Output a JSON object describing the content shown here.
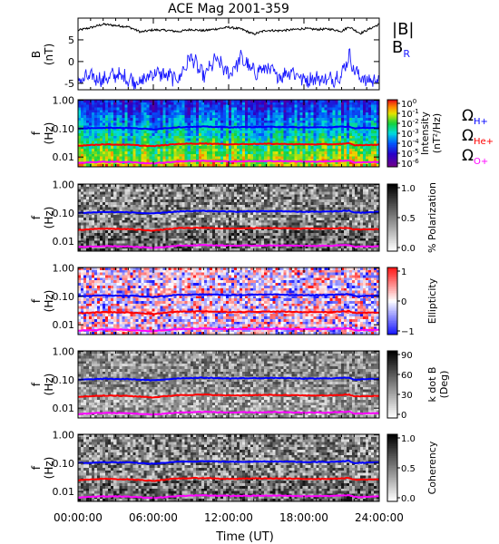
{
  "title": "ACE Mag 2001-359",
  "xlabel": "Time (UT)",
  "x_ticks": [
    "00:00:00",
    "06:00:00",
    "12:00:00",
    "18:00:00",
    "24:00:00"
  ],
  "colors": {
    "br": "#1a1aff",
    "b_total": "#000000",
    "h_plus": "#0000ff",
    "he_plus": "#ff0000",
    "o_plus": "#ff00ff"
  },
  "chart_data": [
    {
      "type": "line",
      "panel": "magnetic-field",
      "ylabel": "B (nT)",
      "y_ticks": [
        "5",
        "0",
        "-5"
      ],
      "ylim": [
        -6.5,
        10
      ],
      "xlim_hours": [
        0,
        24
      ],
      "series": [
        {
          "name": "|B|",
          "x_hours": [
            0,
            1,
            2,
            3,
            4,
            5,
            6,
            7,
            8,
            9,
            10,
            11,
            12,
            13,
            14,
            15,
            16,
            17,
            18,
            19,
            20,
            21,
            21.6,
            22,
            22.5,
            23,
            24
          ],
          "values": [
            7.2,
            7.8,
            8.6,
            8.3,
            8.0,
            6.8,
            7.3,
            7.2,
            6.9,
            7.4,
            7.1,
            7.5,
            7.9,
            7.5,
            6.3,
            7.2,
            7.1,
            7.3,
            7.6,
            7.4,
            7.5,
            7.0,
            8.0,
            7.3,
            6.5,
            7.2,
            8.6
          ]
        },
        {
          "name": "B",
          "sub": "R",
          "x_hours": [
            0,
            1,
            2,
            3,
            4,
            5,
            6,
            7,
            8,
            9,
            10,
            11,
            12,
            13,
            14,
            15,
            16,
            17,
            18,
            19,
            20,
            21,
            21.6,
            22,
            22.5,
            23,
            24
          ],
          "values": [
            -4.5,
            -3.5,
            -4.2,
            -3.0,
            -4.0,
            -4.8,
            -2.5,
            -3.2,
            -4.0,
            1.2,
            -3.5,
            0.5,
            -3.0,
            0.8,
            -2.5,
            -1.5,
            -3.5,
            -2.0,
            -4.2,
            -3.8,
            -4.3,
            -3.0,
            1.5,
            -2.0,
            -3.5,
            -4.5,
            -4.0
          ]
        }
      ]
    },
    {
      "type": "heatmap",
      "panel": "intensity",
      "ylabel": "f (Hz)",
      "y_ticks": [
        "1.00",
        "0.10",
        "0.01"
      ],
      "colorbar_label": "Intensity (nT²/Hz)",
      "colorbar_ticks": [
        "10",
        "10",
        "10",
        "10",
        "10",
        "10",
        "10"
      ],
      "colorbar_exponents": [
        "0",
        "-1",
        "-2",
        "-3",
        "-4",
        "-5",
        "-6"
      ],
      "palette": "rainbow",
      "legend": [
        {
          "label": "Ω",
          "sub": "H+"
        },
        {
          "label": "Ω",
          "sub": "He+"
        },
        {
          "label": "Ω",
          "sub": "O+"
        }
      ]
    },
    {
      "type": "heatmap",
      "panel": "polarization",
      "ylabel": "f (Hz)",
      "y_ticks": [
        "1.00",
        "0.10",
        "0.01"
      ],
      "colorbar_label": "% Polarization",
      "colorbar_ticks": [
        "1.0",
        "0.5",
        "0.0"
      ],
      "palette": "gray"
    },
    {
      "type": "heatmap",
      "panel": "ellipticity",
      "ylabel": "f (Hz)",
      "y_ticks": [
        "1.00",
        "0.10",
        "0.01"
      ],
      "colorbar_label": "Ellipticity",
      "colorbar_ticks": [
        "1",
        "0",
        "−1"
      ],
      "palette": "blue-white-red"
    },
    {
      "type": "heatmap",
      "panel": "k-dot-b",
      "ylabel": "f (Hz)",
      "y_ticks": [
        "1.00",
        "0.10",
        "0.01"
      ],
      "colorbar_label": "k dot B (Deg)",
      "colorbar_ticks": [
        "90",
        "60",
        "30",
        "0"
      ],
      "palette": "gray"
    },
    {
      "type": "heatmap",
      "panel": "coherency",
      "ylabel": "f (Hz)",
      "y_ticks": [
        "1.00",
        "0.10",
        "0.01"
      ],
      "colorbar_label": "Coherency",
      "colorbar_ticks": [
        "1.0",
        "0.5",
        "0.0"
      ],
      "palette": "gray"
    }
  ],
  "gyrofrequency_lines_hz": {
    "h_plus": {
      "x_hours": [
        0,
        2,
        4,
        6,
        8,
        10,
        12,
        14,
        16,
        18,
        20,
        21.6,
        22,
        24
      ],
      "values": [
        0.1,
        0.108,
        0.106,
        0.095,
        0.113,
        0.118,
        0.112,
        0.114,
        0.116,
        0.11,
        0.112,
        0.12,
        0.102,
        0.108
      ]
    },
    "he_plus": {
      "x_hours": [
        0,
        2,
        4,
        6,
        8,
        10,
        12,
        14,
        16,
        18,
        20,
        21.6,
        22,
        24
      ],
      "values": [
        0.025,
        0.028,
        0.027,
        0.024,
        0.029,
        0.03,
        0.028,
        0.029,
        0.029,
        0.028,
        0.028,
        0.03,
        0.026,
        0.027
      ]
    },
    "o_plus": {
      "x_hours": [
        0,
        2,
        4,
        6,
        8,
        10,
        12,
        14,
        16,
        18,
        20,
        21.6,
        22,
        24
      ],
      "values": [
        0.0062,
        0.0068,
        0.0066,
        0.0059,
        0.007,
        0.0074,
        0.007,
        0.0071,
        0.0072,
        0.0069,
        0.007,
        0.0075,
        0.0064,
        0.0067
      ]
    }
  }
}
